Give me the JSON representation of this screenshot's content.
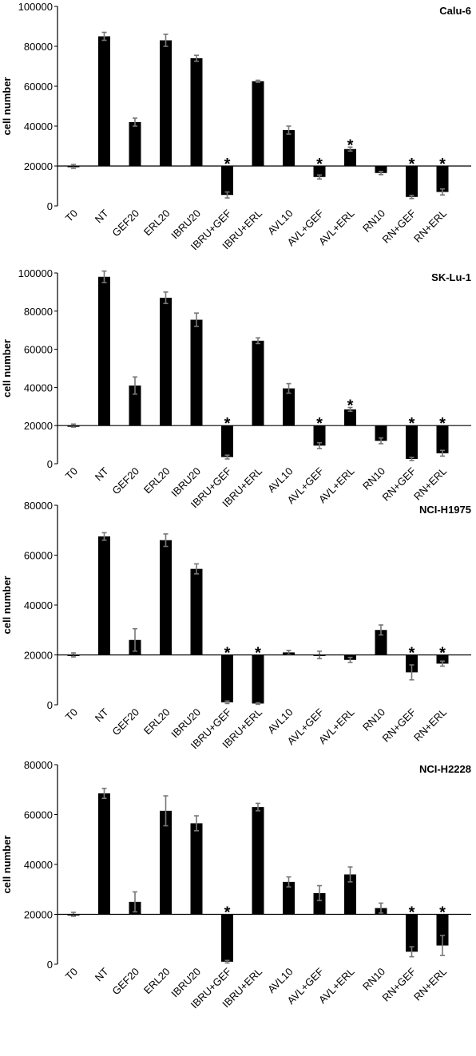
{
  "chart_data": [
    {
      "type": "bar",
      "title": "Calu-6",
      "xlabel": "",
      "ylabel": "cell number",
      "ylim": [
        0,
        100000
      ],
      "yticks": [
        "0",
        "20000",
        "40000",
        "60000",
        "80000",
        "100000"
      ],
      "baseline": 20000,
      "categories": [
        "T0",
        "NT",
        "GEF20",
        "ERL20",
        "IBRU20",
        "IBRU+GEF",
        "IBRU+ERL",
        "AVL10",
        "AVL+GEF",
        "AVL+ERL",
        "RN10",
        "RN+GEF",
        "RN+ERL"
      ],
      "values": [
        19800,
        85000,
        42000,
        83000,
        74000,
        5500,
        62500,
        38000,
        14500,
        28500,
        16500,
        4500,
        7000
      ],
      "errors": [
        1000,
        2000,
        2000,
        3000,
        1500,
        1500,
        500,
        2000,
        1000,
        1000,
        800,
        800,
        1500
      ],
      "significance": [
        "",
        "",
        "",
        "",
        "",
        "*",
        "",
        "",
        "*",
        "*",
        "",
        "*",
        "*"
      ],
      "colors": {
        "bar": "#000000",
        "error": "#777777"
      }
    },
    {
      "type": "bar",
      "title": "SK-Lu-1",
      "xlabel": "",
      "ylabel": "cell number",
      "ylim": [
        0,
        100000
      ],
      "yticks": [
        "0",
        "20000",
        "40000",
        "60000",
        "80000",
        "100000"
      ],
      "baseline": 20000,
      "categories": [
        "T0",
        "NT",
        "GEF20",
        "ERL20",
        "IBRU20",
        "IBRU+GEF",
        "IBRU+ERL",
        "AVL10",
        "AVL+GEF",
        "AVL+ERL",
        "RN10",
        "RN+GEF",
        "RN+ERL"
      ],
      "values": [
        20000,
        98000,
        41000,
        87000,
        75500,
        3500,
        64500,
        39500,
        9500,
        28500,
        12000,
        2500,
        5500
      ],
      "errors": [
        800,
        3000,
        4500,
        3000,
        3500,
        1000,
        1500,
        2500,
        1500,
        1000,
        1500,
        800,
        1500
      ],
      "significance": [
        "",
        "",
        "",
        "",
        "",
        "*",
        "",
        "",
        "*",
        "*",
        "",
        "*",
        "*"
      ],
      "colors": {
        "bar": "#000000",
        "error": "#777777"
      }
    },
    {
      "type": "bar",
      "title": "NCI-H1975",
      "xlabel": "",
      "ylabel": "cell number",
      "ylim": [
        0,
        80000
      ],
      "yticks": [
        "0",
        "20000",
        "40000",
        "60000",
        "80000"
      ],
      "baseline": 20000,
      "categories": [
        "T0",
        "NT",
        "GEF20",
        "ERL20",
        "IBRU20",
        "IBRU+GEF",
        "IBRU+ERL",
        "AVL10",
        "AVL+GEF",
        "AVL+ERL",
        "RN10",
        "RN+GEF",
        "RN+ERL"
      ],
      "values": [
        20000,
        67500,
        26000,
        66000,
        54500,
        1000,
        500,
        21000,
        20000,
        18000,
        30000,
        13000,
        16500
      ],
      "errors": [
        800,
        1500,
        4500,
        2500,
        2000,
        500,
        300,
        800,
        1500,
        1000,
        2000,
        3000,
        1000
      ],
      "significance": [
        "",
        "",
        "",
        "",
        "",
        "*",
        "*",
        "",
        "",
        "",
        "",
        "*",
        "*"
      ],
      "colors": {
        "bar": "#000000",
        "error": "#777777"
      }
    },
    {
      "type": "bar",
      "title": "NCI-H2228",
      "xlabel": "",
      "ylabel": "cell number",
      "ylim": [
        0,
        80000
      ],
      "yticks": [
        "0",
        "20000",
        "40000",
        "60000",
        "80000"
      ],
      "baseline": 20000,
      "categories": [
        "T0",
        "NT",
        "GEF20",
        "ERL20",
        "IBRU20",
        "IBRU+GEF",
        "IBRU+ERL",
        "AVL10",
        "AVL+GEF",
        "AVL+ERL",
        "RN10",
        "RN+GEF",
        "RN+ERL"
      ],
      "values": [
        20000,
        68500,
        25000,
        61500,
        56500,
        1000,
        63000,
        33000,
        28500,
        36000,
        22500,
        5000,
        7500
      ],
      "errors": [
        800,
        2000,
        4000,
        6000,
        3000,
        500,
        1500,
        2000,
        3000,
        3000,
        2000,
        2000,
        4000
      ],
      "significance": [
        "",
        "",
        "",
        "",
        "",
        "*",
        "",
        "",
        "",
        "",
        "",
        "*",
        "*"
      ],
      "colors": {
        "bar": "#000000",
        "error": "#777777"
      }
    }
  ]
}
